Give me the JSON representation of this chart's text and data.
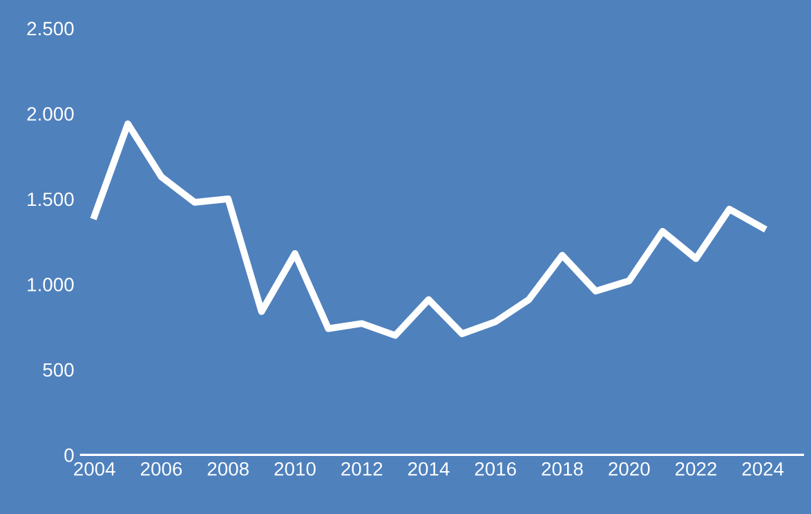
{
  "chart_data": {
    "type": "line",
    "x": [
      2004,
      2005,
      2006,
      2007,
      2008,
      2009,
      2010,
      2011,
      2012,
      2013,
      2014,
      2015,
      2016,
      2017,
      2018,
      2019,
      2020,
      2021,
      2022,
      2023,
      2024
    ],
    "series": [
      {
        "color": "#ffffff",
        "values": [
          1400,
          1940,
          1630,
          1480,
          1500,
          840,
          1180,
          740,
          770,
          700,
          910,
          710,
          780,
          910,
          1170,
          960,
          1020,
          1310,
          1150,
          1440,
          1330
        ]
      }
    ],
    "xlim": [
      2003.6,
      2025.2
    ],
    "xticks": [
      2004,
      2006,
      2008,
      2010,
      2012,
      2014,
      2016,
      2018,
      2020,
      2022,
      2024
    ],
    "ylim": [
      0,
      2500
    ],
    "yticks": [
      0,
      {
        "value": 500,
        "label": "500"
      },
      {
        "value": 1000,
        "label": "1.000"
      },
      {
        "value": 1500,
        "label": "1.500"
      },
      {
        "value": 2000,
        "label": "2.000"
      },
      {
        "value": 2500,
        "label": "2.500"
      }
    ],
    "grid": false,
    "legend": false,
    "marker": "none",
    "line_style": "solid"
  }
}
